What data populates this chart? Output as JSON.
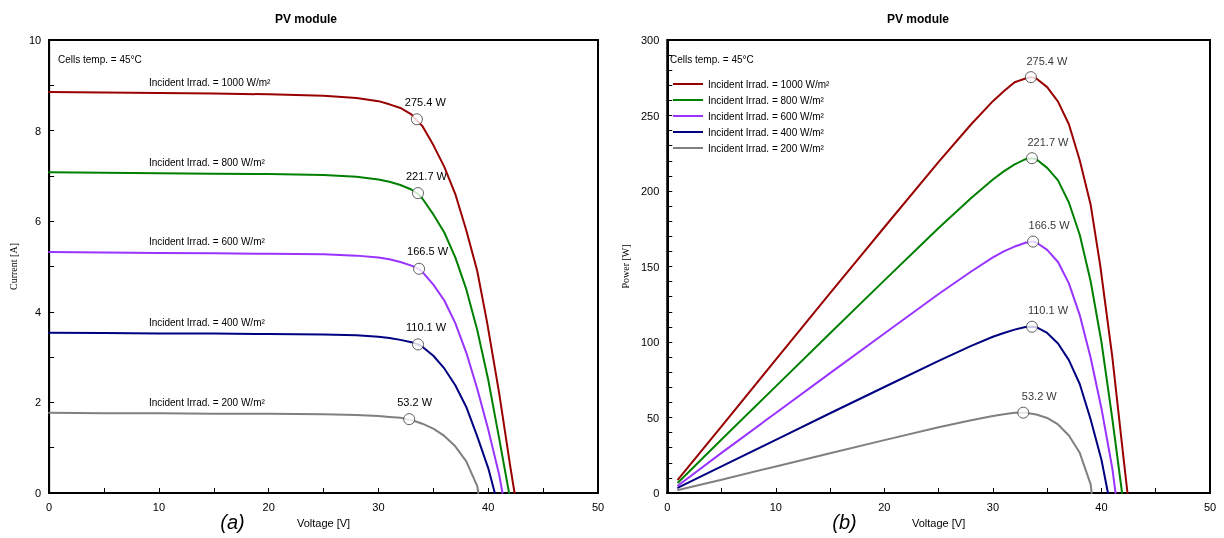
{
  "chart_data": [
    {
      "type": "line",
      "title": "PV module",
      "xlabel": "Voltage [V]",
      "ylabel": "Current [A]",
      "annotations": [
        "Cells temp. = 45°C",
        "(a)",
        {
          "text": "275.4 W",
          "x": 33.5,
          "y": 8.25
        },
        {
          "text": "221.7 W",
          "x": 33.6,
          "y": 6.62
        },
        {
          "text": "166.5 W",
          "x": 33.7,
          "y": 4.95
        },
        {
          "text": "110.1 W",
          "x": 33.6,
          "y": 3.28
        },
        {
          "text": "53.2 W",
          "x": 32.8,
          "y": 1.63
        }
      ],
      "xlim": [
        0,
        50
      ],
      "xticks": [
        0,
        {
          "value": 5,
          "label": null
        },
        10,
        {
          "value": 15,
          "label": null
        },
        20,
        {
          "value": 25,
          "label": null
        },
        30,
        {
          "value": 35,
          "label": null
        },
        40,
        {
          "value": 45,
          "label": null
        },
        50
      ],
      "ylim": [
        0,
        10
      ],
      "yticks": [
        0,
        {
          "value": 1,
          "label": null
        },
        2,
        {
          "value": 3,
          "label": null
        },
        4,
        {
          "value": 5,
          "label": null
        },
        6,
        {
          "value": 7,
          "label": null
        },
        8,
        {
          "value": 9,
          "label": null
        },
        10
      ],
      "grid": false,
      "legend": false,
      "marker": "none",
      "series": [
        {
          "name": "Incident Irrad. = 1000 W/m²",
          "color": "#990000",
          "x": [
            0,
            5,
            10,
            15,
            20,
            25,
            28,
            30,
            31,
            32,
            33,
            33.5,
            34,
            35,
            36,
            37,
            38,
            39,
            39.9,
            41,
            42,
            42.4
          ],
          "values": [
            8.85,
            8.84,
            8.83,
            8.82,
            8.8,
            8.77,
            8.72,
            8.65,
            8.58,
            8.5,
            8.36,
            8.22,
            8.1,
            7.68,
            7.2,
            6.6,
            5.8,
            4.9,
            3.76,
            2.2,
            0.6,
            0
          ]
        },
        {
          "name": "Incident Irrad. = 800 W/m²",
          "color": "#008000",
          "x": [
            0,
            5,
            10,
            15,
            20,
            25,
            28,
            30,
            31,
            32,
            33,
            33.6,
            34,
            35,
            36,
            37,
            38,
            39,
            40,
            41,
            41.9
          ],
          "values": [
            7.08,
            7.07,
            7.06,
            7.05,
            7.04,
            7.02,
            6.98,
            6.92,
            6.87,
            6.8,
            6.7,
            6.6,
            6.5,
            6.15,
            5.75,
            5.2,
            4.5,
            3.6,
            2.5,
            1.2,
            0
          ]
        },
        {
          "name": "Incident Irrad. = 600 W/m²",
          "color": "#9933ff",
          "x": [
            0,
            5,
            10,
            15,
            20,
            25,
            28,
            30,
            31,
            32,
            33,
            33.7,
            34,
            35,
            36,
            37,
            38,
            39,
            40,
            41,
            41.3
          ],
          "values": [
            5.32,
            5.31,
            5.3,
            5.29,
            5.28,
            5.27,
            5.24,
            5.2,
            5.16,
            5.1,
            5.02,
            4.94,
            4.88,
            4.6,
            4.25,
            3.75,
            3.1,
            2.3,
            1.4,
            0.4,
            0
          ]
        },
        {
          "name": "Incident Irrad. = 400 W/m²",
          "color": "#000080",
          "x": [
            0,
            5,
            10,
            15,
            20,
            25,
            28,
            30,
            31,
            32,
            33,
            33.6,
            34,
            35,
            36,
            37,
            38,
            39,
            40,
            40.6
          ],
          "values": [
            3.54,
            3.53,
            3.52,
            3.52,
            3.51,
            3.5,
            3.48,
            3.45,
            3.42,
            3.38,
            3.33,
            3.28,
            3.23,
            3.03,
            2.75,
            2.38,
            1.9,
            1.25,
            0.55,
            0
          ]
        },
        {
          "name": "Incident Irrad. = 200 W/m²",
          "color": "#808080",
          "x": [
            0,
            5,
            10,
            15,
            20,
            25,
            28,
            30,
            31,
            32,
            32.8,
            33,
            34,
            35,
            36,
            37,
            38,
            39,
            39.1
          ],
          "values": [
            1.77,
            1.76,
            1.76,
            1.75,
            1.75,
            1.74,
            1.72,
            1.7,
            1.68,
            1.66,
            1.62,
            1.61,
            1.53,
            1.42,
            1.26,
            1.03,
            0.7,
            0.15,
            0
          ]
        },
        {
          "type": "scatter",
          "marker": "circle",
          "color": "#ffffff",
          "x": [
            33.5,
            33.6,
            33.7,
            33.6,
            32.8
          ],
          "values": [
            8.25,
            6.62,
            4.95,
            3.28,
            1.63
          ]
        }
      ]
    },
    {
      "type": "line",
      "title": "PV module",
      "xlabel": "Voltage [V]",
      "ylabel": "Power [W]",
      "annotations": [
        "Cells temp. = 45°C",
        "(b)"
      ],
      "xlim": [
        0,
        50
      ],
      "xticks": [
        0,
        {
          "value": 5,
          "label": null
        },
        10,
        {
          "value": 15,
          "label": null
        },
        20,
        {
          "value": 25,
          "label": null
        },
        30,
        {
          "value": 35,
          "label": null
        },
        40,
        {
          "value": 45,
          "label": null
        },
        50
      ],
      "ylim": [
        0,
        300
      ],
      "yticks": [
        0,
        {
          "value": 10,
          "label": null
        },
        {
          "value": 20,
          "label": null
        },
        {
          "value": 30,
          "label": null
        },
        {
          "value": 40,
          "label": null
        },
        50,
        {
          "value": 60,
          "label": null
        },
        {
          "value": 70,
          "label": null
        },
        {
          "value": 80,
          "label": null
        },
        {
          "value": 90,
          "label": null
        },
        100,
        {
          "value": 110,
          "label": null
        },
        {
          "value": 120,
          "label": null
        },
        {
          "value": 130,
          "label": null
        },
        {
          "value": 140,
          "label": null
        },
        150,
        {
          "value": 160,
          "label": null
        },
        {
          "value": 170,
          "label": null
        },
        {
          "value": 180,
          "label": null
        },
        {
          "value": 190,
          "label": null
        },
        200,
        {
          "value": 210,
          "label": null
        },
        {
          "value": 220,
          "label": null
        },
        {
          "value": 230,
          "label": null
        },
        {
          "value": 240,
          "label": null
        },
        250,
        {
          "value": 260,
          "label": null
        },
        {
          "value": 270,
          "label": null
        },
        {
          "value": 280,
          "label": null
        },
        {
          "value": 290,
          "label": null
        },
        300
      ],
      "grid": false,
      "legend": "top left",
      "marker": "none",
      "series": [
        {
          "name": "Incident Irrad. = 1000 W/m²",
          "color": "#990000",
          "x": [
            1,
            5,
            10,
            15,
            20,
            25,
            28,
            30,
            31,
            32,
            33,
            33.5,
            34,
            35,
            36,
            37,
            38,
            39,
            39.9,
            41,
            42,
            42.4
          ],
          "values": [
            9,
            44.2,
            88.3,
            132.3,
            176,
            219.3,
            244.2,
            259.5,
            266,
            272,
            274.5,
            275.4,
            274.5,
            268.8,
            259.2,
            244.2,
            220.4,
            191.1,
            150,
            90.2,
            25.2,
            0
          ]
        },
        {
          "name": "Incident Irrad. = 800 W/m²",
          "color": "#008000",
          "x": [
            1,
            5,
            10,
            15,
            20,
            25,
            28,
            30,
            31,
            32,
            33,
            33.6,
            34,
            35,
            36,
            37,
            38,
            39,
            40,
            41,
            41.9
          ],
          "values": [
            7,
            35.4,
            70.6,
            105.8,
            140.8,
            175.5,
            195.4,
            207.6,
            213,
            217.6,
            221.1,
            221.7,
            221,
            215.3,
            207,
            192.4,
            171,
            140.4,
            100,
            49.2,
            0
          ]
        },
        {
          "name": "Incident Irrad. = 600 W/m²",
          "color": "#9933ff",
          "x": [
            1,
            5,
            10,
            15,
            20,
            25,
            28,
            30,
            31,
            32,
            33,
            33.7,
            34,
            35,
            36,
            37,
            38,
            39,
            40,
            41,
            41.3
          ],
          "values": [
            5,
            26.6,
            53,
            79.4,
            105.6,
            131.8,
            146.7,
            156,
            160,
            163.2,
            165.7,
            166.5,
            165.9,
            161,
            153,
            138.8,
            117.8,
            89.7,
            56,
            16.4,
            0
          ]
        },
        {
          "name": "Incident Irrad. = 400 W/m²",
          "color": "#000080",
          "x": [
            1,
            5,
            10,
            15,
            20,
            25,
            28,
            30,
            31,
            32,
            33,
            33.6,
            34,
            35,
            36,
            37,
            38,
            39,
            40,
            40.6
          ],
          "values": [
            3.5,
            17.7,
            35.2,
            52.8,
            70.2,
            87.5,
            97.4,
            103.5,
            106,
            108.2,
            109.9,
            110.1,
            109.8,
            106,
            99,
            88,
            72.2,
            48.8,
            22,
            0
          ]
        },
        {
          "name": "Incident Irrad. = 200 W/m²",
          "color": "#808080",
          "x": [
            1,
            5,
            10,
            15,
            20,
            25,
            28,
            30,
            31,
            32,
            32.8,
            33,
            34,
            35,
            36,
            37,
            38,
            39,
            39.1
          ],
          "values": [
            2,
            8.8,
            17.6,
            26.3,
            35,
            43.5,
            48.2,
            51,
            52.1,
            53.1,
            53.2,
            53.1,
            52,
            49.7,
            45.4,
            38.1,
            26.6,
            5.9,
            0
          ]
        },
        {
          "type": "scatter",
          "marker": "circle",
          "color": "#ffffff",
          "x": [
            33.5,
            33.6,
            33.7,
            33.6,
            32.8
          ],
          "values": [
            275.4,
            221.7,
            166.5,
            110.1,
            53.2
          ],
          "value_labels": [
            "275.4 W",
            "221.7 W",
            "166.5 W",
            "110.1 W",
            "53.2 W"
          ]
        }
      ]
    }
  ]
}
